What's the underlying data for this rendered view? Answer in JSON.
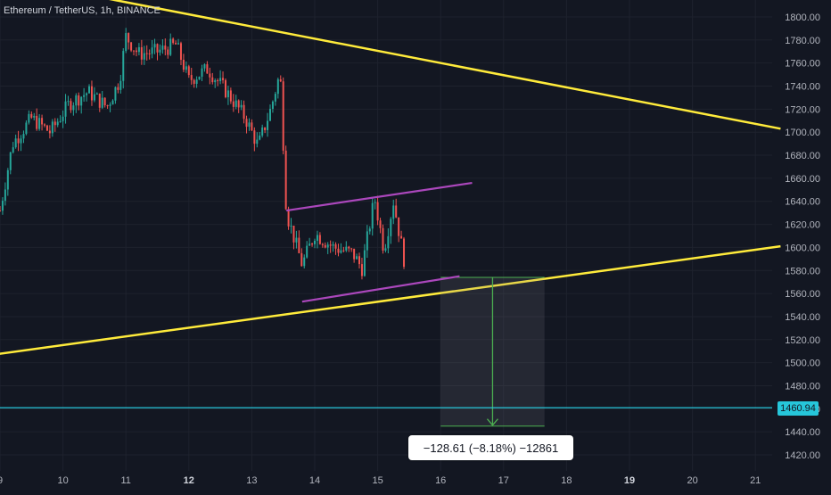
{
  "header": {
    "symbol_title": "Ethereum / TetherUS, 1h, BINANCE"
  },
  "colors": {
    "background": "#131722",
    "bull": "#26a69a",
    "bear": "#ef5350",
    "trendline": "#ffeb3b",
    "channel": "#ab47bc",
    "hline": "#26c6da",
    "measure": "#4caf50",
    "axis_text": "#b2b5be"
  },
  "chart_data": {
    "type": "candlestick",
    "symbol": "Ethereum / TetherUS",
    "interval": "1h",
    "exchange": "BINANCE",
    "ylim": [
      1413,
      1813
    ],
    "y_ticks": [
      "1800.00",
      "1780.00",
      "1760.00",
      "1740.00",
      "1720.00",
      "1700.00",
      "1680.00",
      "1660.00",
      "1640.00",
      "1620.00",
      "1600.00",
      "1580.00",
      "1560.00",
      "1540.00",
      "1520.00",
      "1500.00",
      "1480.00",
      "1460.00",
      "1440.00",
      "1420.00"
    ],
    "x_ticks": [
      "9",
      "10",
      "11",
      "12",
      "13",
      "14",
      "15",
      "16",
      "17",
      "18",
      "19",
      "20",
      "21"
    ],
    "x_ticks_bold": [
      "12",
      "19"
    ],
    "price_path": [
      {
        "day": 9.0,
        "price": 1632
      },
      {
        "day": 9.2,
        "price": 1690
      },
      {
        "day": 9.5,
        "price": 1712
      },
      {
        "day": 9.8,
        "price": 1700
      },
      {
        "day": 10.1,
        "price": 1725
      },
      {
        "day": 10.4,
        "price": 1735
      },
      {
        "day": 10.7,
        "price": 1722
      },
      {
        "day": 10.9,
        "price": 1745
      },
      {
        "day": 11.0,
        "price": 1783
      },
      {
        "day": 11.2,
        "price": 1768
      },
      {
        "day": 11.5,
        "price": 1770
      },
      {
        "day": 11.8,
        "price": 1776
      },
      {
        "day": 12.0,
        "price": 1745
      },
      {
        "day": 12.3,
        "price": 1755
      },
      {
        "day": 12.6,
        "price": 1735
      },
      {
        "day": 12.9,
        "price": 1712
      },
      {
        "day": 13.1,
        "price": 1688
      },
      {
        "day": 13.3,
        "price": 1720
      },
      {
        "day": 13.45,
        "price": 1752
      },
      {
        "day": 13.55,
        "price": 1630
      },
      {
        "day": 13.8,
        "price": 1585
      },
      {
        "day": 14.0,
        "price": 1612
      },
      {
        "day": 14.3,
        "price": 1600
      },
      {
        "day": 14.6,
        "price": 1595
      },
      {
        "day": 14.75,
        "price": 1582
      },
      {
        "day": 14.95,
        "price": 1643
      },
      {
        "day": 15.1,
        "price": 1598
      },
      {
        "day": 15.25,
        "price": 1640
      },
      {
        "day": 15.45,
        "price": 1580
      }
    ],
    "trendlines": [
      {
        "name": "upper-trendline",
        "points": [
          [
            8.9,
            1835
          ],
          [
            21.4,
            1703
          ]
        ]
      },
      {
        "name": "lower-trendline",
        "points": [
          [
            8.9,
            1507
          ],
          [
            21.4,
            1601
          ]
        ]
      }
    ],
    "channel": [
      {
        "name": "channel-upper",
        "points": [
          [
            13.55,
            1632
          ],
          [
            16.5,
            1656
          ]
        ]
      },
      {
        "name": "channel-lower",
        "points": [
          [
            13.8,
            1553
          ],
          [
            16.3,
            1575
          ]
        ]
      }
    ],
    "horizontal_line": {
      "price": 1460.94,
      "label": "1460.94"
    },
    "measure": {
      "day_from": 16.0,
      "day_to": 17.65,
      "price_from": 1574,
      "price_to": 1445,
      "label": "−128.61 (−8.18%) −12861"
    }
  }
}
